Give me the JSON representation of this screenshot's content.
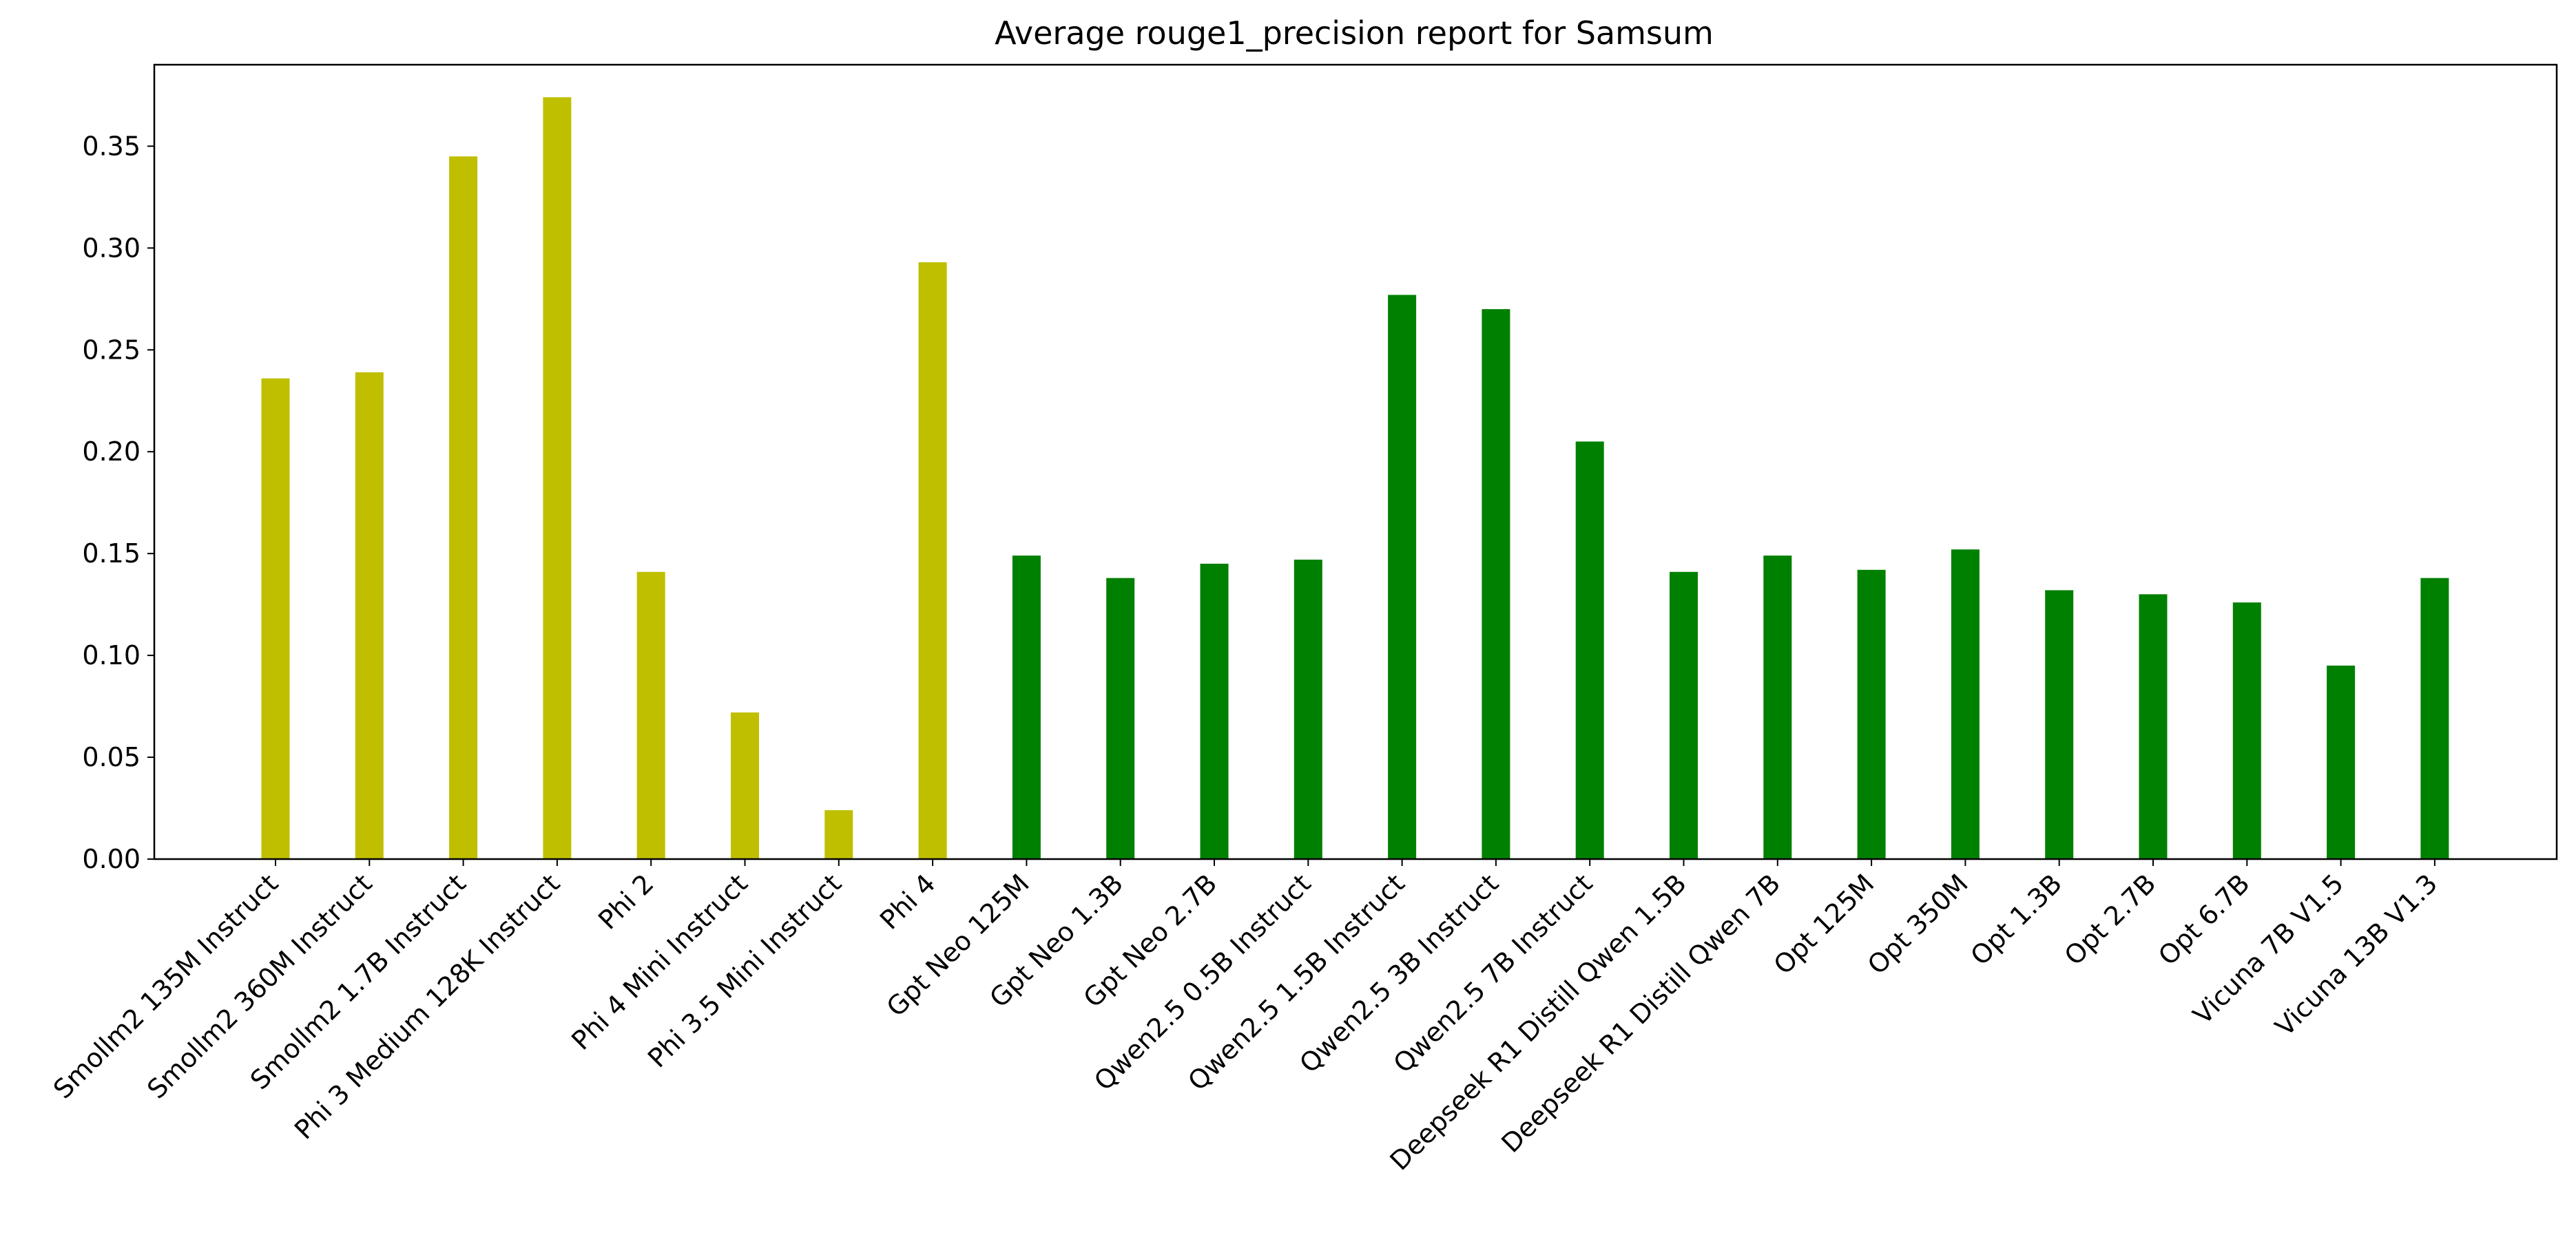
{
  "chart_data": {
    "type": "bar",
    "title": "Average rouge1_precision report for Samsum",
    "xlabel": "",
    "ylabel": "",
    "ylim": [
      0,
      0.39
    ],
    "yticks": [
      0.0,
      0.05,
      0.1,
      0.15,
      0.2,
      0.25,
      0.3,
      0.35
    ],
    "ytick_labels": [
      "0.00",
      "0.05",
      "0.10",
      "0.15",
      "0.20",
      "0.25",
      "0.30",
      "0.35"
    ],
    "grid": false,
    "categories": [
      "Smollm2 135M Instruct",
      "Smollm2 360M Instruct",
      "Smollm2 1.7B Instruct",
      "Phi 3 Medium 128K Instruct",
      "Phi 2",
      "Phi 4 Mini Instruct",
      "Phi 3.5 Mini Instruct",
      "Phi 4",
      "Gpt Neo 125M",
      "Gpt Neo 1.3B",
      "Gpt Neo 2.7B",
      "Qwen2.5 0.5B Instruct",
      "Qwen2.5 1.5B Instruct",
      "Qwen2.5 3B Instruct",
      "Qwen2.5 7B Instruct",
      "Deepseek R1 Distill Qwen 1.5B",
      "Deepseek R1 Distill Qwen 7B",
      "Opt 125M",
      "Opt 350M",
      "Opt 1.3B",
      "Opt 2.7B",
      "Opt 6.7B",
      "Vicuna 7B V1.5",
      "Vicuna 13B V1.3"
    ],
    "values": [
      0.236,
      0.239,
      0.345,
      0.374,
      0.141,
      0.072,
      0.024,
      0.293,
      0.149,
      0.138,
      0.145,
      0.147,
      0.277,
      0.27,
      0.205,
      0.141,
      0.149,
      0.142,
      0.152,
      0.132,
      0.13,
      0.126,
      0.095,
      0.138
    ],
    "colors": [
      "#bfbf00",
      "#bfbf00",
      "#bfbf00",
      "#bfbf00",
      "#bfbf00",
      "#bfbf00",
      "#bfbf00",
      "#bfbf00",
      "#008000",
      "#008000",
      "#008000",
      "#008000",
      "#008000",
      "#008000",
      "#008000",
      "#008000",
      "#008000",
      "#008000",
      "#008000",
      "#008000",
      "#008000",
      "#008000",
      "#008000",
      "#008000"
    ]
  }
}
